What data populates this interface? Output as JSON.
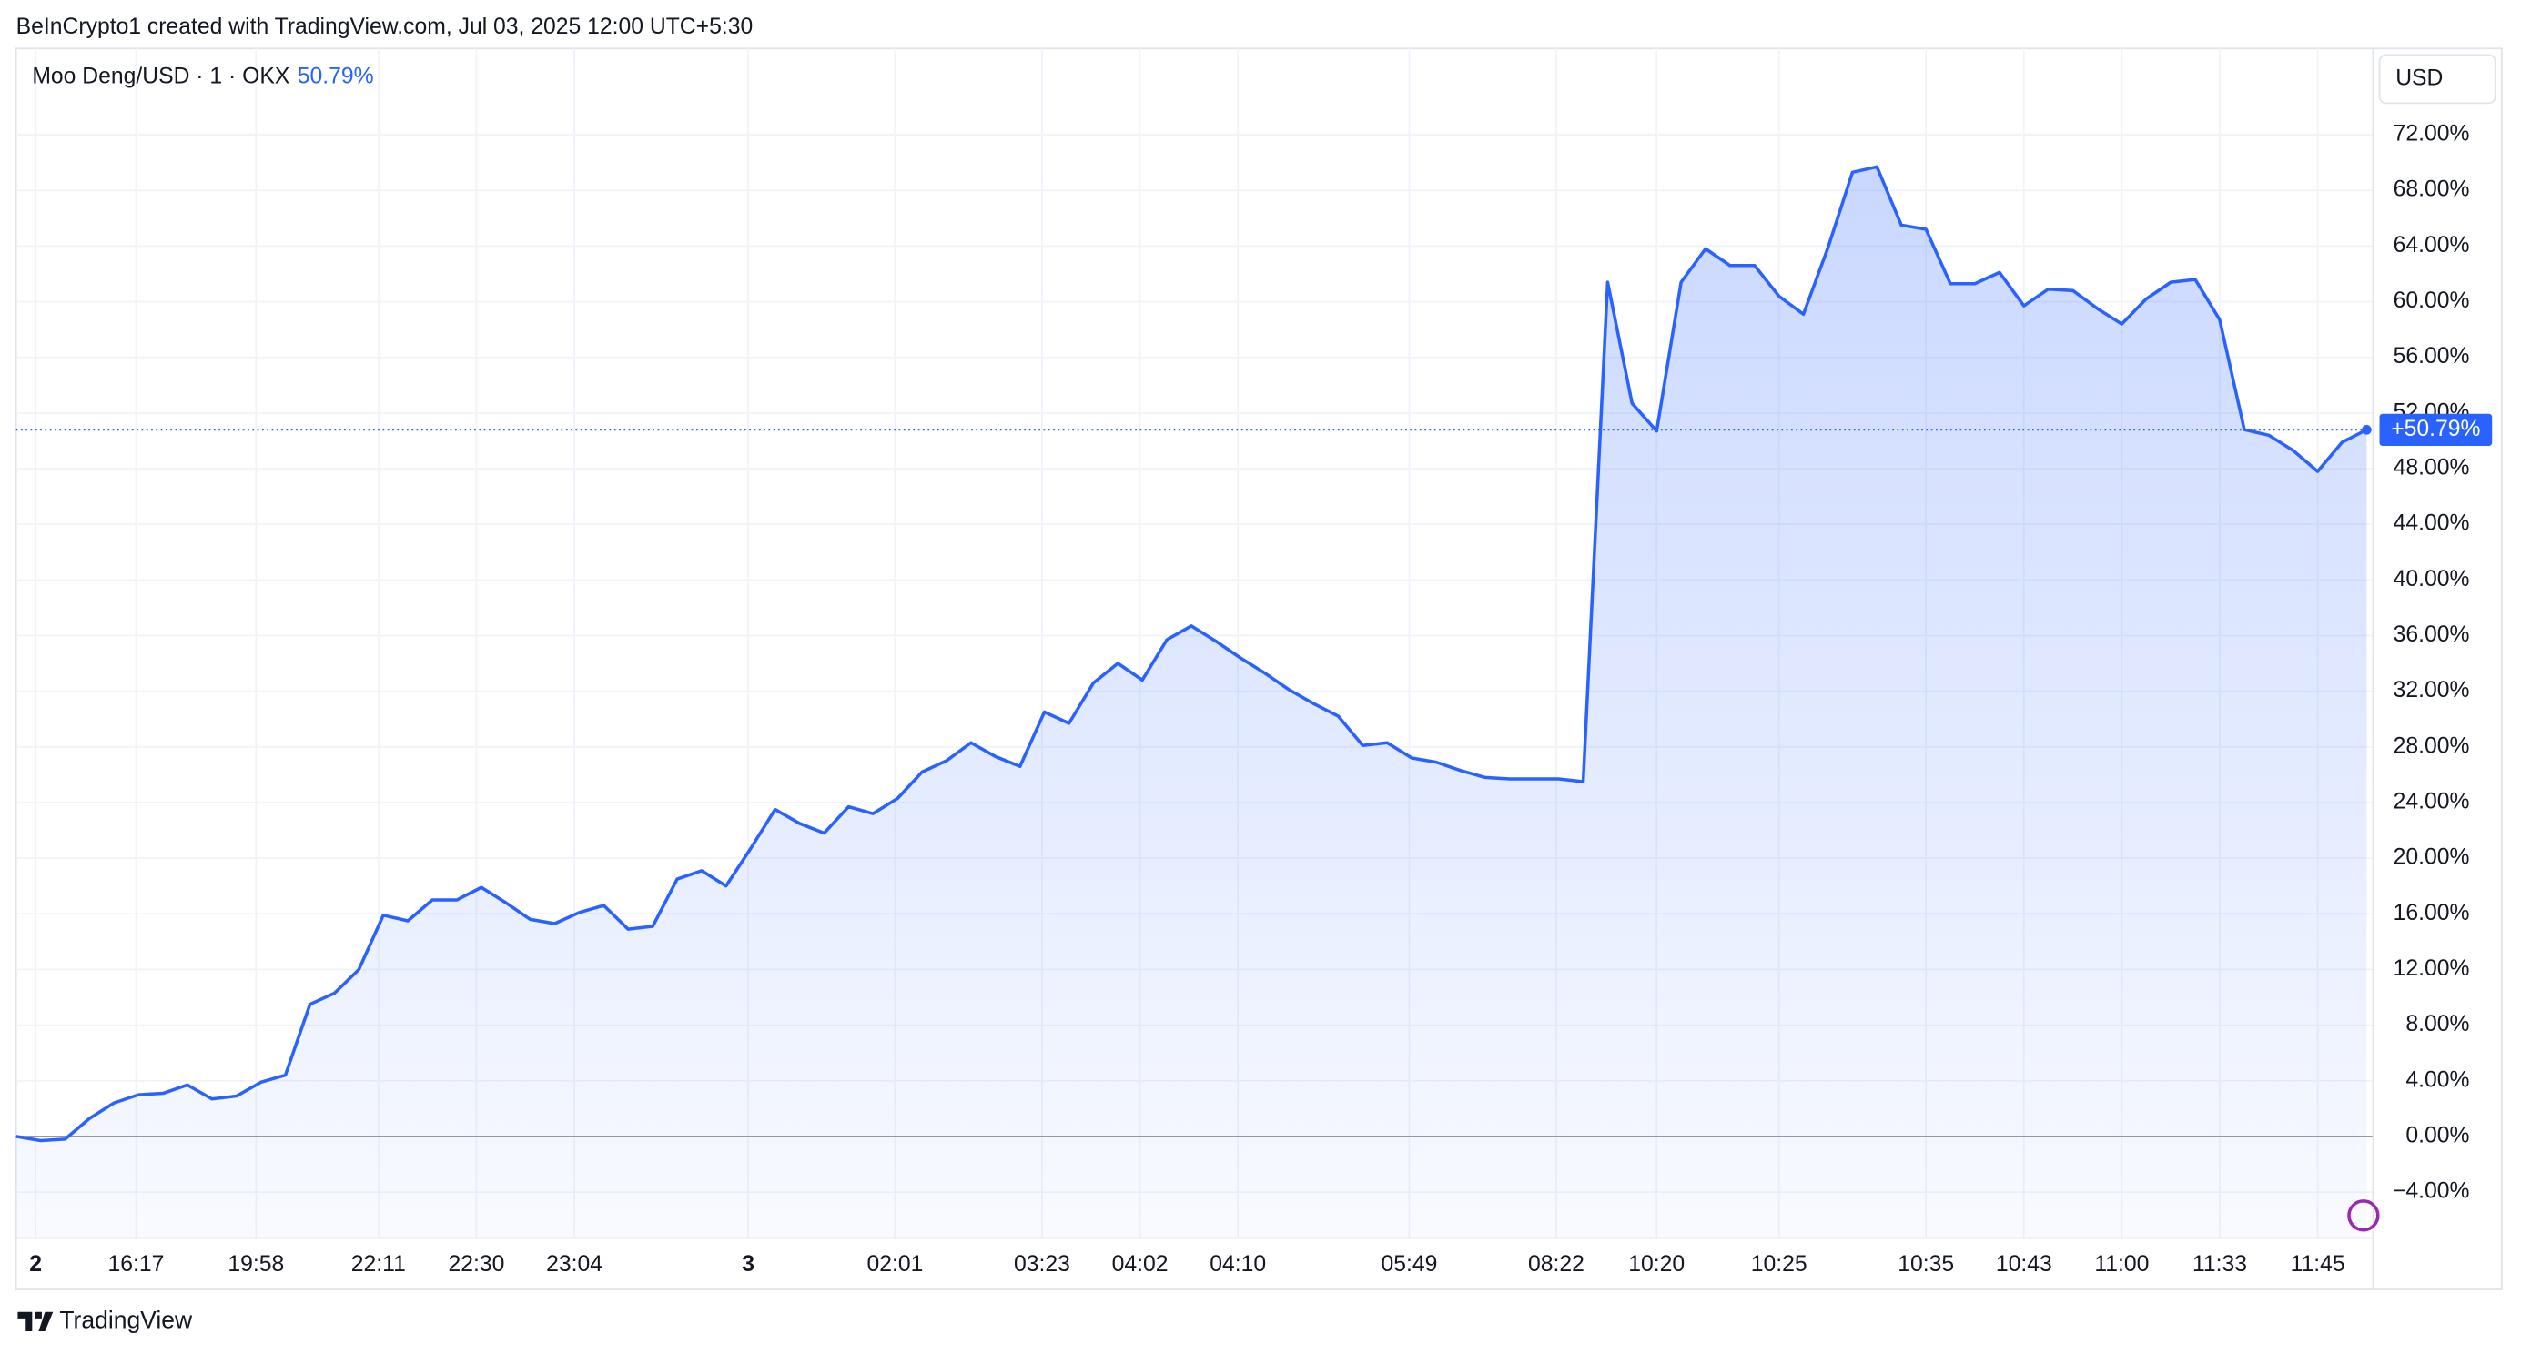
{
  "header": "BeInCrypto1 created with TradingView.com, Jul 03, 2025 12:00 UTC+5:30",
  "chart_data": {
    "type": "area",
    "title": "Moo Deng/USD · 1 · OKX",
    "legend_value": "50.79%",
    "price_tag": "+50.79%",
    "currency": "USD",
    "color": "#2962ff",
    "values": [
      0,
      -0.3,
      -0.2,
      1.3,
      2.4,
      3.0,
      3.1,
      3.7,
      2.7,
      2.9,
      3.9,
      4.4,
      9.5,
      10.3,
      12.0,
      15.9,
      15.5,
      17.0,
      17.0,
      17.9,
      16.8,
      15.6,
      15.3,
      16.1,
      16.6,
      14.9,
      15.1,
      18.5,
      19.1,
      18.0,
      20.7,
      23.5,
      22.5,
      21.8,
      23.7,
      23.2,
      24.3,
      26.2,
      27.0,
      28.3,
      27.3,
      26.6,
      30.5,
      29.7,
      32.6,
      34.0,
      32.8,
      35.7,
      36.7,
      35.6,
      34.4,
      33.3,
      32.1,
      31.1,
      30.2,
      28.1,
      28.3,
      27.2,
      26.9,
      26.3,
      25.8,
      25.7,
      25.7,
      25.7,
      25.5,
      61.4,
      52.7,
      50.7,
      61.4,
      63.8,
      62.6,
      62.6,
      60.4,
      59.1,
      63.9,
      69.3,
      69.7,
      65.5,
      65.2,
      61.3,
      61.3,
      62.1,
      59.7,
      60.9,
      60.8,
      59.5,
      58.4,
      60.2,
      61.4,
      61.6,
      58.7,
      50.8,
      50.4,
      49.3,
      47.8,
      49.9,
      50.79
    ],
    "xlim": [
      0,
      96
    ],
    "xticks": [
      {
        "value": 0.8,
        "label": "2"
      },
      {
        "value": 4.9,
        "label": "16:17"
      },
      {
        "value": 9.8,
        "label": "19:58"
      },
      {
        "value": 14.8,
        "label": "22:11"
      },
      {
        "value": 18.8,
        "label": "22:30"
      },
      {
        "value": 22.8,
        "label": "23:04"
      },
      {
        "value": 29.9,
        "label": "3"
      },
      {
        "value": 35.9,
        "label": "02:01"
      },
      {
        "value": 41.9,
        "label": "03:23"
      },
      {
        "value": 45.9,
        "label": "04:02"
      },
      {
        "value": 49.9,
        "label": "04:10"
      },
      {
        "value": 56.9,
        "label": "05:49"
      },
      {
        "value": 62.9,
        "label": "08:22"
      },
      {
        "value": 67,
        "label": "10:20"
      },
      {
        "value": 72,
        "label": "10:25"
      },
      {
        "value": 78,
        "label": "10:35"
      },
      {
        "value": 82,
        "label": "10:43"
      },
      {
        "value": 86,
        "label": "11:00"
      },
      {
        "value": 90,
        "label": "11:33"
      },
      {
        "value": 94,
        "label": "11:45"
      }
    ],
    "ylim": [
      -7.3,
      78.2
    ],
    "yticks": [
      {
        "value": -4,
        "label": "−4.00%"
      },
      {
        "value": 0,
        "label": "0.00%"
      },
      {
        "value": 4,
        "label": "4.00%"
      },
      {
        "value": 8,
        "label": "8.00%"
      },
      {
        "value": 12,
        "label": "12.00%"
      },
      {
        "value": 16,
        "label": "16.00%"
      },
      {
        "value": 20,
        "label": "20.00%"
      },
      {
        "value": 24,
        "label": "24.00%"
      },
      {
        "value": 28,
        "label": "28.00%"
      },
      {
        "value": 32,
        "label": "32.00%"
      },
      {
        "value": 36,
        "label": "36.00%"
      },
      {
        "value": 40,
        "label": "40.00%"
      },
      {
        "value": 44,
        "label": "44.00%"
      },
      {
        "value": 48,
        "label": "48.00%"
      },
      {
        "value": 52,
        "label": "52.00%"
      },
      {
        "value": 56,
        "label": "56.00%"
      },
      {
        "value": 60,
        "label": "60.00%"
      },
      {
        "value": 64,
        "label": "64.00%"
      },
      {
        "value": 68,
        "label": "68.00%"
      },
      {
        "value": 72,
        "label": "72.00%"
      }
    ],
    "grid": true
  },
  "footer": "TradingView"
}
